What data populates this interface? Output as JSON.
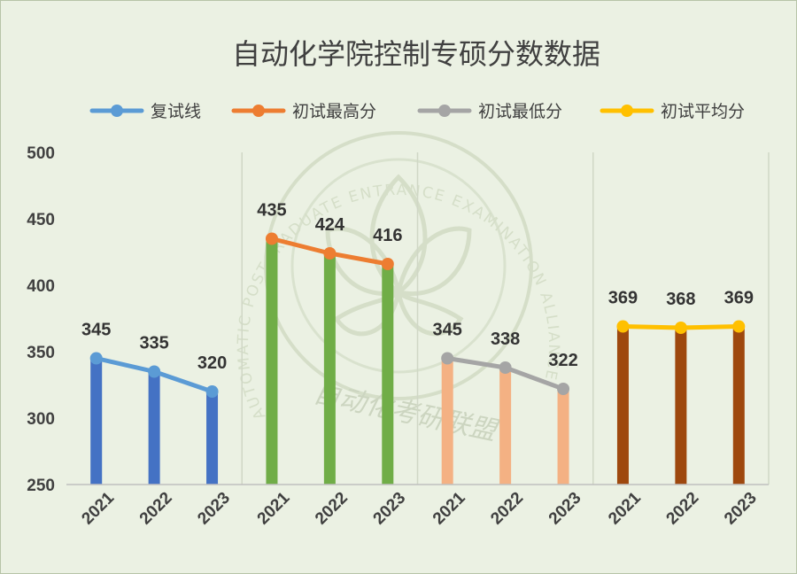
{
  "chart_data": {
    "type": "bar+line",
    "title": "自动化学院控制专硕分数数据",
    "ylim": [
      250,
      500
    ],
    "yticks": [
      "250",
      "300",
      "350",
      "400",
      "450",
      "500"
    ],
    "legend_position": "top",
    "grid": false,
    "groups": [
      {
        "name": "复试线",
        "years": [
          "2021",
          "2022",
          "2023"
        ],
        "values": [
          345,
          335,
          320
        ],
        "bar_color": "#4472c4",
        "line_color": "#5b9bd5"
      },
      {
        "name": "初试最高分",
        "years": [
          "2021",
          "2022",
          "2023"
        ],
        "values": [
          435,
          424,
          416
        ],
        "bar_color": "#70ad47",
        "line_color": "#ed7d31"
      },
      {
        "name": "初试最低分",
        "years": [
          "2021",
          "2022",
          "2023"
        ],
        "values": [
          345,
          338,
          322
        ],
        "bar_color": "#f4b183",
        "line_color": "#a5a5a5"
      },
      {
        "name": "初试平均分",
        "years": [
          "2021",
          "2022",
          "2023"
        ],
        "values": [
          369,
          368,
          369
        ],
        "bar_color": "#9e480e",
        "line_color": "#ffc000"
      }
    ]
  },
  "watermark": {
    "ring_text": "AUTOMATIC POSTGRADUATE ENTRANCE EXAMINATION ALLIANCE",
    "center_text": "自动化考研联盟"
  }
}
